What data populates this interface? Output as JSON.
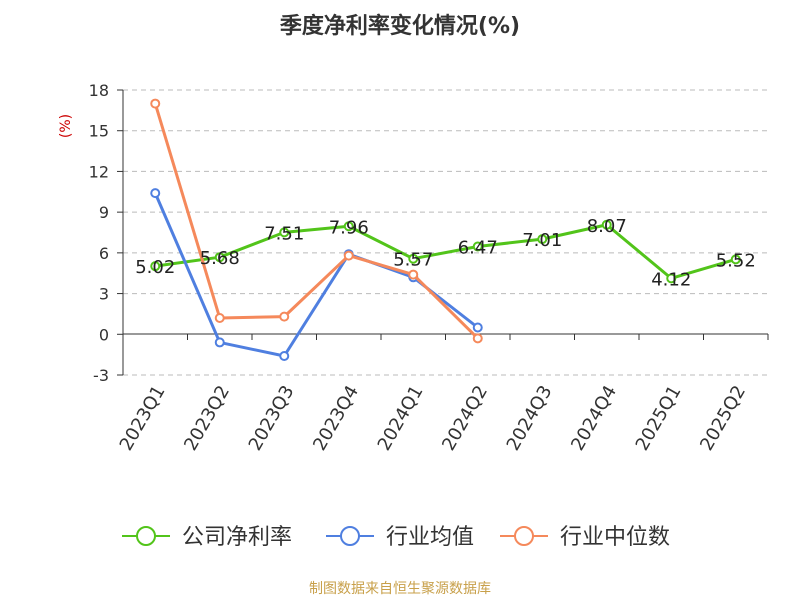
{
  "chart_data": {
    "type": "line",
    "title": "季度净利率变化情况(%)",
    "ylabel": "(%)",
    "xlabel": "",
    "ylim": [
      -3,
      18
    ],
    "yticks": [
      -3,
      0,
      3,
      6,
      9,
      12,
      15,
      18
    ],
    "grid": true,
    "legend_position": "bottom",
    "categories": [
      "2023Q1",
      "2023Q2",
      "2023Q3",
      "2023Q4",
      "2024Q1",
      "2024Q2",
      "2024Q3",
      "2024Q4",
      "2025Q1",
      "2025Q2"
    ],
    "series": [
      {
        "name": "公司净利率",
        "color": "#52c41a",
        "values": [
          5.02,
          5.68,
          7.51,
          7.96,
          5.57,
          6.47,
          7.01,
          8.07,
          4.12,
          5.52
        ],
        "labels": [
          "5.02",
          "5.68",
          "7.51",
          "7.96",
          "5.57",
          "6.47",
          "7.01",
          "8.07",
          "4.12",
          "5.52"
        ]
      },
      {
        "name": "行业均值",
        "color": "#4f7fe0",
        "values": [
          10.4,
          -0.6,
          -1.6,
          5.9,
          4.2,
          0.5,
          null,
          null,
          null,
          null
        ]
      },
      {
        "name": "行业中位数",
        "color": "#f5895b",
        "values": [
          17.0,
          1.2,
          1.3,
          5.8,
          4.4,
          -0.3,
          null,
          null,
          null,
          null
        ]
      }
    ]
  },
  "source": "制图数据来自恒生聚源数据库"
}
